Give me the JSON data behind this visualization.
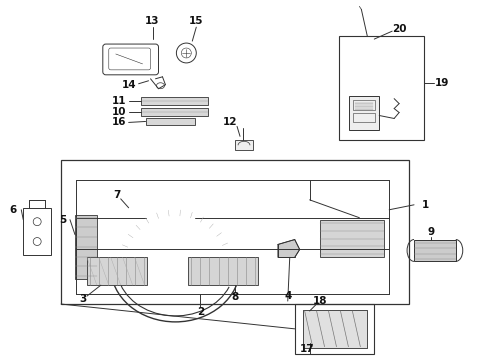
{
  "bg_color": "#ffffff",
  "line_color": "#333333",
  "label_color": "#111111",
  "label_fs": 7.5,
  "lw": 0.7
}
